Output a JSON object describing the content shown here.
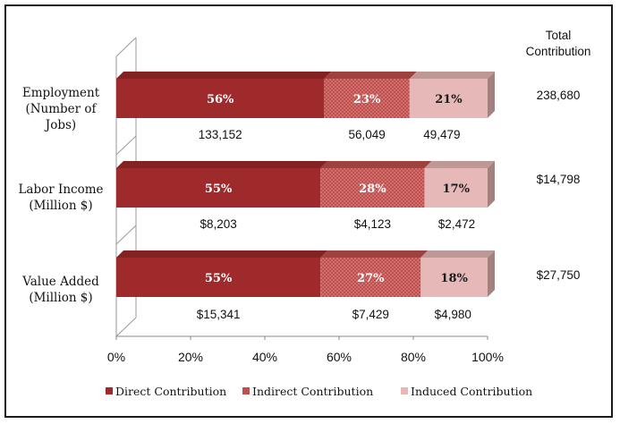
{
  "chart_data": {
    "type": "bar",
    "orientation": "horizontal",
    "stacked": true,
    "percent_stacked": true,
    "categories": [
      "Employment (Number of Jobs)",
      "Labor Income (Million $)",
      "Value Added (Million $)"
    ],
    "category_lines": [
      [
        "Employment",
        "(Number of",
        "Jobs)"
      ],
      [
        "Labor Income",
        "(Million $)"
      ],
      [
        "Value Added",
        "(Million $)"
      ]
    ],
    "series": [
      {
        "name": "Direct Contribution",
        "color": "#9e2a2b",
        "percent": [
          56,
          55,
          55
        ],
        "values": [
          "133,152",
          "$8,203",
          "$15,341"
        ]
      },
      {
        "name": "Indirect Contribution",
        "color": "#c0504d",
        "percent": [
          23,
          28,
          27
        ],
        "values": [
          "56,049",
          "$4,123",
          "$7,429"
        ]
      },
      {
        "name": "Induced Contribution",
        "color": "#e6b9b8",
        "percent": [
          21,
          17,
          18
        ],
        "values": [
          "49,479",
          "$2,472",
          "$4,980"
        ]
      }
    ],
    "total_header": [
      "Total",
      "Contribution"
    ],
    "totals": [
      "238,680",
      "$14,798",
      "$27,750"
    ],
    "xticks": [
      "0%",
      "20%",
      "40%",
      "60%",
      "80%",
      "100%"
    ],
    "xlim": [
      0,
      100
    ],
    "legend_position": "bottom",
    "grid": false
  }
}
